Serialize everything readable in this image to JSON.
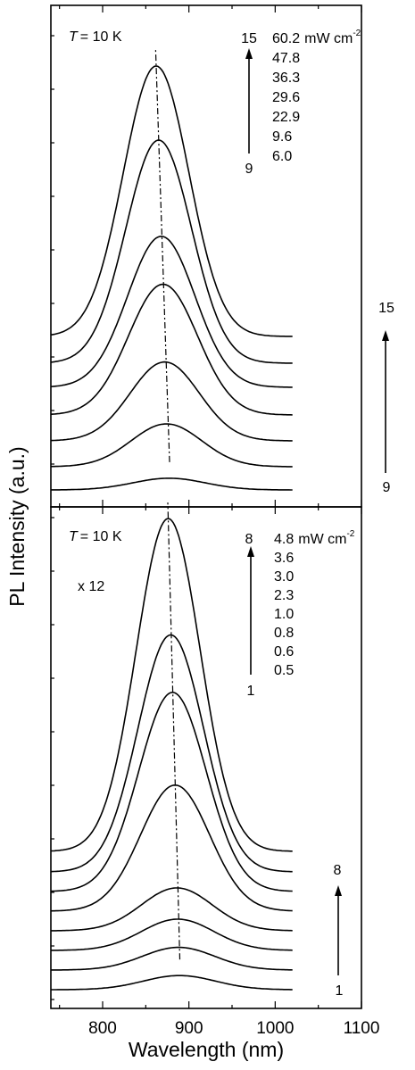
{
  "figure": {
    "ylabel": "PL Intensity (a.u.)",
    "xlabel": "Wavelength (nm)",
    "x_ticks": [
      "800",
      "900",
      "1000",
      "1100"
    ]
  },
  "chart_data": [
    {
      "type": "line",
      "panel": "top",
      "temperature_label": "T = 10 K",
      "temperature_symbol": "T",
      "temperature_value": "= 10 K",
      "unit_label": "mW cm",
      "unit_exponent": "-2",
      "power_labels": [
        "60.2",
        "47.8",
        "36.3",
        "29.6",
        "22.9",
        "9.6",
        "6.0"
      ],
      "arrow_top_label": "15",
      "arrow_bottom_label": "9",
      "stack_top_label": "15",
      "stack_bottom_label": "9",
      "xlim": [
        740,
        1100
      ],
      "series": [
        {
          "name": "9",
          "power": 6.0,
          "baseline": 0.0,
          "amp": 0.26,
          "peak_nm": 877,
          "sigma_nm": 42
        },
        {
          "name": "10",
          "power": 9.6,
          "baseline": 0.26,
          "amp": 0.95,
          "peak_nm": 874,
          "sigma_nm": 41
        },
        {
          "name": "11",
          "power": 22.9,
          "baseline": 0.55,
          "amp": 1.75,
          "peak_nm": 872,
          "sigma_nm": 40
        },
        {
          "name": "12",
          "power": 29.6,
          "baseline": 0.84,
          "amp": 2.9,
          "peak_nm": 870,
          "sigma_nm": 40
        },
        {
          "name": "13",
          "power": 36.3,
          "baseline": 1.15,
          "amp": 3.35,
          "peak_nm": 868,
          "sigma_nm": 39
        },
        {
          "name": "14",
          "power": 47.8,
          "baseline": 1.42,
          "amp": 4.95,
          "peak_nm": 865,
          "sigma_nm": 38
        },
        {
          "name": "15",
          "power": 60.2,
          "baseline": 1.72,
          "amp": 6.0,
          "peak_nm": 862,
          "sigma_nm": 38
        }
      ]
    },
    {
      "type": "line",
      "panel": "bottom",
      "temperature_label": "T = 10 K",
      "temperature_symbol": "T",
      "temperature_value": "= 10 K",
      "multiplier_label": "x 12",
      "unit_label": "mW cm",
      "unit_exponent": "-2",
      "power_labels": [
        "4.8",
        "3.6",
        "3.0",
        "2.3",
        "1.0",
        "0.8",
        "0.6",
        "0.5"
      ],
      "arrow_top_label": "8",
      "arrow_bottom_label": "1",
      "stack_top_label": "8",
      "stack_bottom_label": "1",
      "xlim": [
        740,
        1100
      ],
      "series": [
        {
          "name": "1",
          "power": 0.5,
          "baseline": 0.0,
          "amp": 0.28,
          "peak_nm": 889,
          "sigma_nm": 42
        },
        {
          "name": "2",
          "power": 0.6,
          "baseline": 0.22,
          "amp": 0.45,
          "peak_nm": 888,
          "sigma_nm": 42
        },
        {
          "name": "3",
          "power": 0.8,
          "baseline": 0.44,
          "amp": 0.62,
          "peak_nm": 887,
          "sigma_nm": 42
        },
        {
          "name": "4",
          "power": 1.0,
          "baseline": 0.66,
          "amp": 0.85,
          "peak_nm": 886,
          "sigma_nm": 41
        },
        {
          "name": "5",
          "power": 2.3,
          "baseline": 0.88,
          "amp": 2.5,
          "peak_nm": 884,
          "sigma_nm": 40
        },
        {
          "name": "6",
          "power": 3.0,
          "baseline": 1.1,
          "amp": 3.95,
          "peak_nm": 881,
          "sigma_nm": 39
        },
        {
          "name": "7",
          "power": 3.6,
          "baseline": 1.32,
          "amp": 4.7,
          "peak_nm": 879,
          "sigma_nm": 38
        },
        {
          "name": "8",
          "power": 4.8,
          "baseline": 1.55,
          "amp": 6.6,
          "peak_nm": 876,
          "sigma_nm": 37
        }
      ]
    }
  ]
}
